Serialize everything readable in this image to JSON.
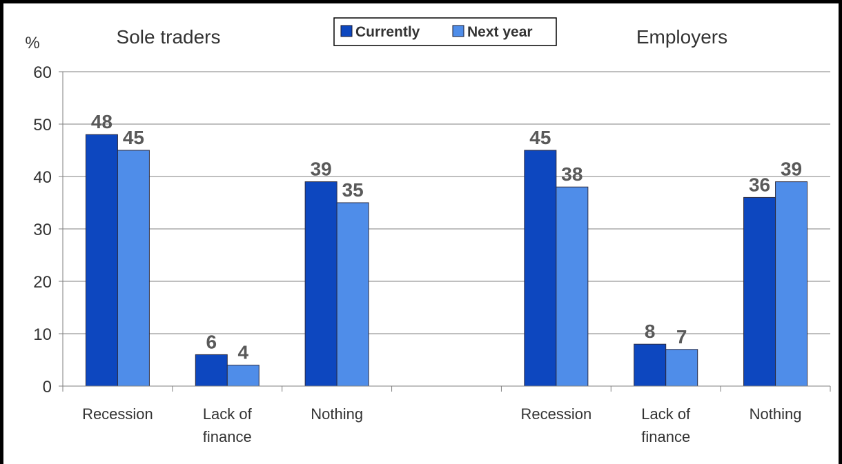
{
  "chart_data": {
    "type": "bar",
    "ylabel": "%",
    "ylim": [
      0,
      60
    ],
    "yticks": [
      0,
      10,
      20,
      30,
      40,
      50,
      60
    ],
    "grid": true,
    "legend_position": "top-center",
    "groups": [
      {
        "title": "Sole traders",
        "categories": [
          "Recession",
          "Lack of finance",
          "Nothing"
        ],
        "series": [
          {
            "name": "Currently",
            "values": [
              48,
              6,
              39
            ]
          },
          {
            "name": "Next year",
            "values": [
              45,
              4,
              35
            ]
          }
        ]
      },
      {
        "title": "Employers",
        "categories": [
          "Recession",
          "Lack of finance",
          "Nothing"
        ],
        "series": [
          {
            "name": "Currently",
            "values": [
              45,
              8,
              36
            ]
          },
          {
            "name": "Next year",
            "values": [
              38,
              7,
              39
            ]
          }
        ]
      }
    ],
    "colors": {
      "Currently": "#0d47bf",
      "Next year": "#4f8de9"
    }
  }
}
